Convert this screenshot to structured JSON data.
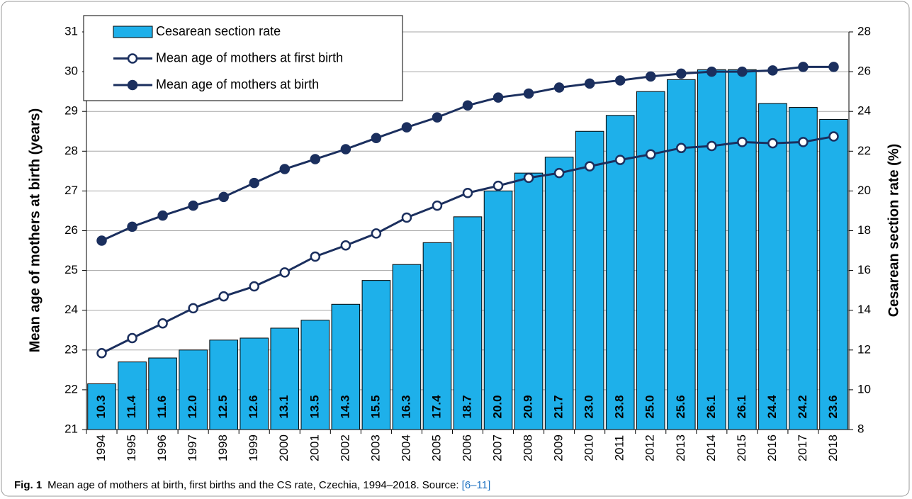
{
  "chart_data": {
    "type": "bar",
    "caption_label": "Fig. 1",
    "caption_text": "Mean age of mothers at birth, first births and the CS rate, Czechia, 1994–2018. Source: ",
    "caption_ref": "[6–11]",
    "y_label": "Mean age of mothers at birth (years)",
    "y2_label": "Cesarean section rate (%)",
    "categories": [
      "1994",
      "1995",
      "1996",
      "1997",
      "1998",
      "1999",
      "2000",
      "2001",
      "2002",
      "2003",
      "2004",
      "2005",
      "2006",
      "2007",
      "2008",
      "2009",
      "2010",
      "2011",
      "2012",
      "2013",
      "2014",
      "2015",
      "2016",
      "2017",
      "2018"
    ],
    "ylim": [
      21,
      31
    ],
    "yticks": [
      21,
      22,
      23,
      24,
      25,
      26,
      27,
      28,
      29,
      30,
      31
    ],
    "y2lim": [
      8,
      28
    ],
    "y2ticks": [
      8,
      10,
      12,
      14,
      16,
      18,
      20,
      22,
      24,
      26,
      28
    ],
    "grid": true,
    "legend": "top-left",
    "series": [
      {
        "name": "Cesarean section rate",
        "type": "bar",
        "axis": "y2",
        "color": "#1eb0ea",
        "values": [
          10.3,
          11.4,
          11.6,
          12.0,
          12.5,
          12.6,
          13.1,
          13.5,
          14.3,
          15.5,
          16.3,
          17.4,
          18.7,
          20.0,
          20.9,
          21.7,
          23.0,
          23.8,
          25.0,
          25.6,
          26.1,
          26.1,
          24.4,
          24.2,
          23.6
        ],
        "value_labels": [
          "10.3",
          "11.4",
          "11.6",
          "12.0",
          "12.5",
          "12.6",
          "13.1",
          "13.5",
          "14.3",
          "15.5",
          "16.3",
          "17.4",
          "18.7",
          "20.0",
          "20.9",
          "21.7",
          "23.0",
          "23.8",
          "25.0",
          "25.6",
          "26.1",
          "26.1",
          "24.4",
          "24.2",
          "23.6"
        ]
      },
      {
        "name": "Mean age of mothers at first birth",
        "type": "line",
        "marker": "open",
        "color": "#1b2f5e",
        "values": [
          22.92,
          23.3,
          23.67,
          24.05,
          24.35,
          24.6,
          24.95,
          25.35,
          25.63,
          25.93,
          26.33,
          26.63,
          26.95,
          27.13,
          27.33,
          27.45,
          27.62,
          27.78,
          27.92,
          28.08,
          28.13,
          28.23,
          28.2,
          28.23,
          28.37
        ]
      },
      {
        "name": "Mean age of mothers at birth",
        "type": "line",
        "marker": "filled",
        "color": "#1b2f5e",
        "values": [
          25.75,
          26.1,
          26.38,
          26.63,
          26.85,
          27.2,
          27.55,
          27.8,
          28.05,
          28.33,
          28.6,
          28.85,
          29.15,
          29.35,
          29.45,
          29.6,
          29.7,
          29.78,
          29.88,
          29.95,
          30.0,
          30.0,
          30.03,
          30.12,
          30.12
        ]
      }
    ]
  }
}
